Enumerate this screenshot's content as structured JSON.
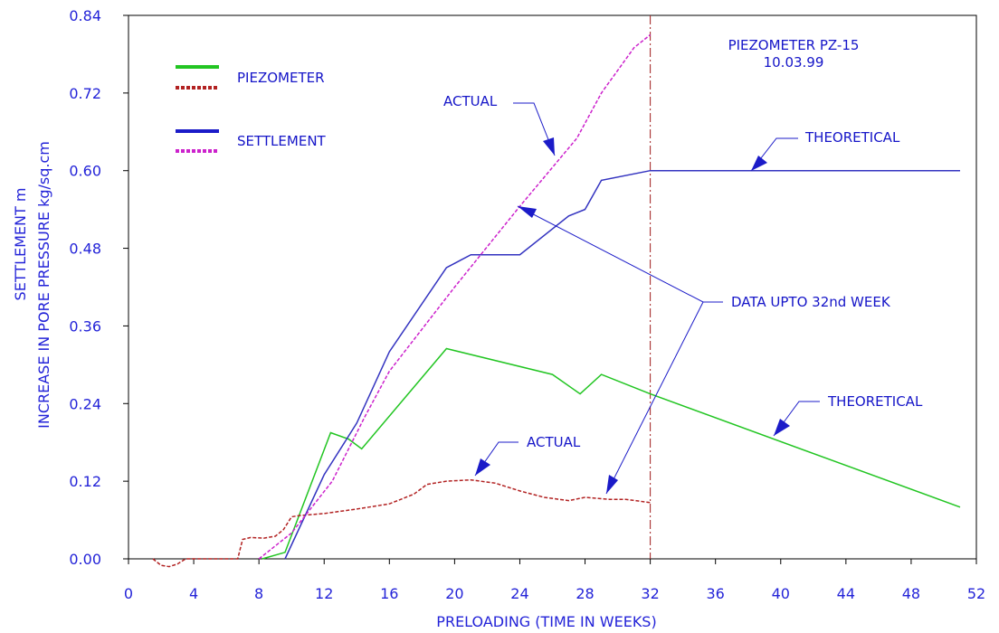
{
  "chart_data": {
    "type": "line",
    "title": "PIEZOMETER PZ-15",
    "subtitle": "10.03.99",
    "xlabel": "PRELOADING (TIME IN WEEKS)",
    "ylabel_line1": "SETTLEMENT m",
    "ylabel_line2": "INCREASE IN PORE PRESSURE kg/sq.cm",
    "xlim": [
      0,
      52
    ],
    "ylim": [
      0,
      0.84
    ],
    "x_ticks": [
      "0",
      "4",
      "8",
      "12",
      "16",
      "20",
      "24",
      "28",
      "32",
      "36",
      "40",
      "44",
      "48",
      "52"
    ],
    "y_ticks": [
      "0.00",
      "0.12",
      "0.24",
      "0.36",
      "0.48",
      "0.60",
      "0.72",
      "0.84"
    ],
    "grid": false,
    "legend": {
      "position": "top-left",
      "groups": [
        {
          "label": "PIEZOMETER",
          "styles": [
            "theoretical",
            "actual"
          ]
        },
        {
          "label": "SETTLEMENT",
          "styles": [
            "theoretical",
            "actual"
          ]
        }
      ]
    },
    "vertical_marker": {
      "x": 32,
      "style": "dash-dot",
      "color": "#a01c1c"
    },
    "colors": {
      "piezometer_theoretical": "#22c522",
      "piezometer_actual": "#b22222",
      "settlement_theoretical": "#3333c0",
      "settlement_actual": "#cc22cc",
      "text": "#2323d8"
    },
    "series": [
      {
        "key": "piezometer_theoretical",
        "style": "solid",
        "x": [
          8.2,
          9.6,
          12.4,
          13.5,
          14.3,
          19.5,
          26.0,
          27.7,
          29.0,
          32.0,
          51.0
        ],
        "values": [
          0.0,
          0.01,
          0.195,
          0.185,
          0.17,
          0.325,
          0.285,
          0.255,
          0.285,
          0.255,
          0.08
        ]
      },
      {
        "key": "piezometer_actual",
        "style": "dashed",
        "x": [
          1.5,
          2.0,
          2.5,
          3.0,
          3.5,
          4.0,
          6.0,
          6.7,
          7.0,
          7.5,
          8.3,
          9.0,
          9.5,
          10.0,
          10.5,
          12.0,
          14.0,
          16.0,
          17.5,
          18.3,
          19.5,
          21.0,
          22.5,
          24.0,
          25.5,
          27.0,
          28.0,
          29.5,
          30.5,
          32.0
        ],
        "values": [
          0.0,
          -0.01,
          -0.012,
          -0.008,
          0.0,
          0.0,
          0.0,
          0.0,
          0.03,
          0.033,
          0.032,
          0.035,
          0.045,
          0.065,
          0.067,
          0.07,
          0.077,
          0.085,
          0.1,
          0.115,
          0.12,
          0.122,
          0.117,
          0.105,
          0.095,
          0.09,
          0.095,
          0.092,
          0.092,
          0.087
        ]
      },
      {
        "key": "settlement_theoretical",
        "style": "solid",
        "x": [
          9.6,
          12.0,
          14.0,
          16.0,
          19.5,
          21.0,
          24.0,
          27.0,
          28.0,
          29.0,
          32.0,
          51.0
        ],
        "values": [
          0.0,
          0.13,
          0.21,
          0.32,
          0.45,
          0.47,
          0.47,
          0.53,
          0.54,
          0.585,
          0.6,
          0.6
        ]
      },
      {
        "key": "settlement_actual",
        "style": "dashed",
        "x": [
          8.0,
          10.0,
          12.5,
          14.5,
          16.0,
          20.0,
          24.0,
          27.5,
          29.0,
          31.0,
          32.0
        ],
        "values": [
          0.0,
          0.04,
          0.12,
          0.22,
          0.29,
          0.42,
          0.545,
          0.65,
          0.72,
          0.79,
          0.81
        ]
      }
    ],
    "annotations": {
      "actual_settlement": "ACTUAL",
      "theoretical_settlement": "THEORETICAL",
      "data_upto": "DATA UPTO 32nd WEEK",
      "theoretical_piezometer": "THEORETICAL",
      "actual_piezometer": "ACTUAL"
    }
  }
}
